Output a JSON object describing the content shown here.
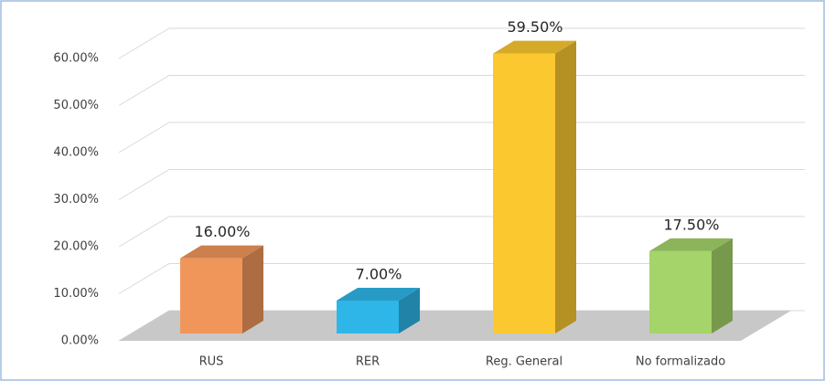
{
  "chart_data": {
    "type": "bar",
    "categories": [
      "RUS",
      "RER",
      "Reg. General",
      "No formalizado"
    ],
    "values": [
      16,
      7,
      59.5,
      17.5
    ],
    "value_labels": [
      "16.00%",
      "7.00%",
      "59.50%",
      "17.50%"
    ],
    "colors": [
      "#f0965a",
      "#2eb6e8",
      "#fcc830",
      "#a5d46a"
    ],
    "ylim": [
      0,
      60
    ],
    "yticks": [
      {
        "value": 0,
        "label": "0.00%"
      },
      {
        "value": 10,
        "label": "10.00%"
      },
      {
        "value": 20,
        "label": "20.00%"
      },
      {
        "value": 30,
        "label": "30.00%"
      },
      {
        "value": 40,
        "label": "40.00%"
      },
      {
        "value": 50,
        "label": "50.00%"
      },
      {
        "value": 60,
        "label": "60.00%"
      }
    ],
    "grid": true
  }
}
